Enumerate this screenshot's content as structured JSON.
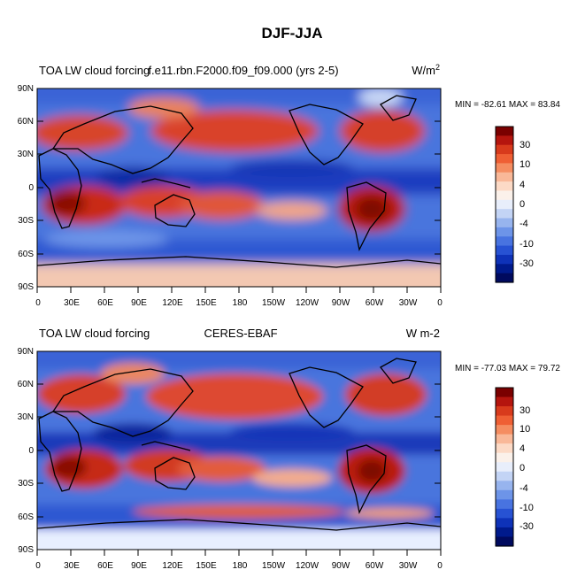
{
  "figure": {
    "title": "DJF-JJA"
  },
  "panels": [
    {
      "left_title": "TOA LW cloud forcing",
      "center_title": "f.e11.rbn.F2000.f09_f09.000 (yrs 2-5)",
      "units_base": "W/m",
      "units_sup": "2",
      "stats": "MIN = -82.61 MAX =  83.84"
    },
    {
      "left_title": "TOA LW cloud forcing",
      "center_title": "CERES-EBAF",
      "units_base": "W m-2",
      "units_sup": "",
      "stats": "MIN = -77.03 MAX =  79.72"
    }
  ],
  "map_axes": {
    "lat_labels": [
      "90N",
      "60N",
      "30N",
      "0",
      "30S",
      "60S",
      "90S"
    ],
    "lon_labels": [
      "0",
      "30E",
      "60E",
      "90E",
      "120E",
      "150E",
      "180",
      "150W",
      "120W",
      "90W",
      "60W",
      "30W",
      "0"
    ],
    "lat_range": [
      -90,
      90
    ],
    "lon_range": [
      0,
      360
    ],
    "projection": "cylindrical-equidistant"
  },
  "colorbar": {
    "labels": [
      "30",
      "10",
      "4",
      "0",
      "-4",
      "-10",
      "-30"
    ],
    "colors": [
      "#7a0000",
      "#b5150e",
      "#d83a1c",
      "#ef5f34",
      "#f58d61",
      "#f9b898",
      "#fcdac6",
      "#fbf1ea",
      "#e8eefb",
      "#c3d4f5",
      "#97b4ee",
      "#6d94e8",
      "#4873e0",
      "#2752d3",
      "#0e32b8",
      "#001a8c",
      "#000a5e"
    ]
  },
  "field_colors": {
    "strong_positive": "#9a1208",
    "positive": "#d9432a",
    "weak_positive": "#f1a381",
    "neutral": "#e2ebfa",
    "weak_negative": "#8fb0ec",
    "negative": "#3d66da",
    "strong_negative": "#0a2aa8"
  }
}
